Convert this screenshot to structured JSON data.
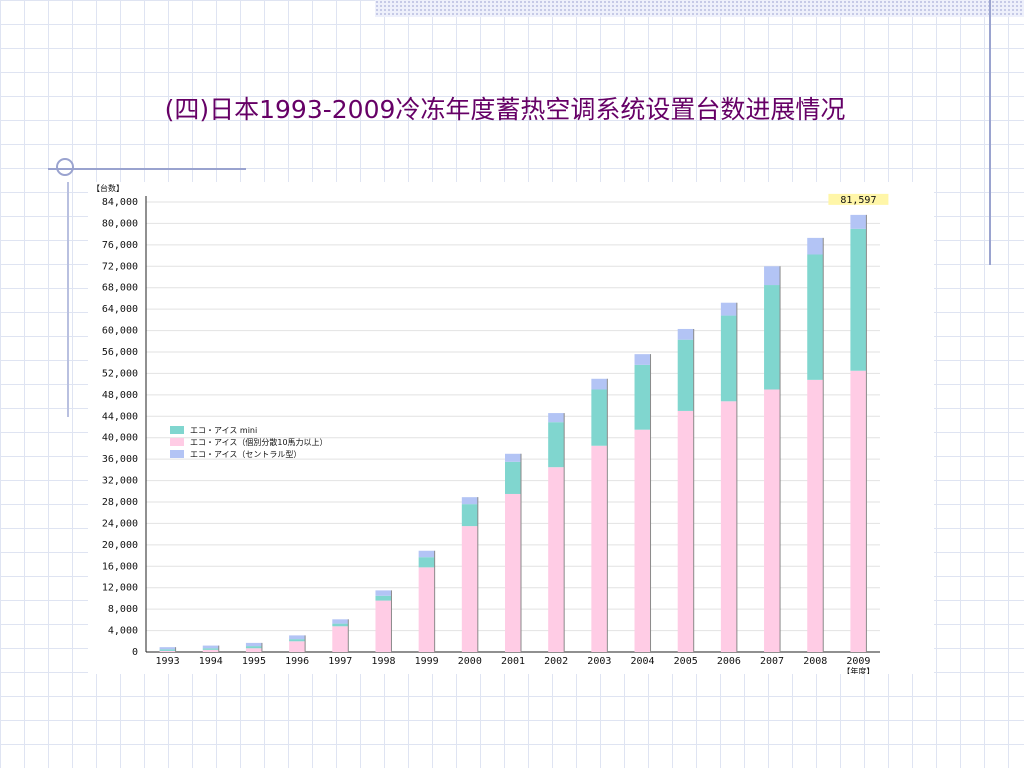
{
  "slide": {
    "title": "(四)日本1993-2009冷冻年度蓄热空调系统设置台数进展情况"
  },
  "colors": {
    "title": "#660066",
    "series": [
      "#ffcce5",
      "#80d6cf",
      "#b3c4f5"
    ],
    "top_value_bg": "#fff6a8"
  },
  "chart_data": {
    "type": "bar",
    "stacked": true,
    "ylabel": "【台数】",
    "xlabel": "【年度】",
    "ylim": [
      0,
      84000
    ],
    "ytick_step": 4000,
    "ytick_labels": [
      "0",
      "4,000",
      "8,000",
      "12,000",
      "16,000",
      "20,000",
      "24,000",
      "28,000",
      "32,000",
      "36,000",
      "40,000",
      "44,000",
      "48,000",
      "52,000",
      "56,000",
      "60,000",
      "64,000",
      "68,000",
      "72,000",
      "76,000",
      "80,000",
      "84,000"
    ],
    "grid": true,
    "legend_position": "left-middle",
    "categories": [
      "1993",
      "1994",
      "1995",
      "1996",
      "1997",
      "1998",
      "1999",
      "2000",
      "2001",
      "2002",
      "2003",
      "2004",
      "2005",
      "2006",
      "2007",
      "2008",
      "2009"
    ],
    "series": [
      {
        "name": "エコ・アイス（個別分散10馬力以上）",
        "values": [
          200,
          400,
          700,
          2000,
          4800,
          9600,
          15800,
          23500,
          29500,
          34500,
          38500,
          41500,
          45000,
          46800,
          49000,
          50800,
          52500
        ]
      },
      {
        "name": "エコ・アイス mini",
        "values": [
          300,
          300,
          400,
          400,
          500,
          900,
          1900,
          4100,
          6000,
          8400,
          10500,
          12100,
          13300,
          16000,
          19500,
          23400,
          26500
        ]
      },
      {
        "name": "エコ・アイス（セントラル型）",
        "values": [
          400,
          500,
          600,
          700,
          800,
          1000,
          1200,
          1300,
          1500,
          1700,
          2000,
          2000,
          2000,
          2400,
          3500,
          3100,
          2597
        ]
      }
    ],
    "legend_order": [
      1,
      0,
      2
    ],
    "annotations": [
      {
        "category": "2009",
        "text": "81,597"
      }
    ]
  }
}
